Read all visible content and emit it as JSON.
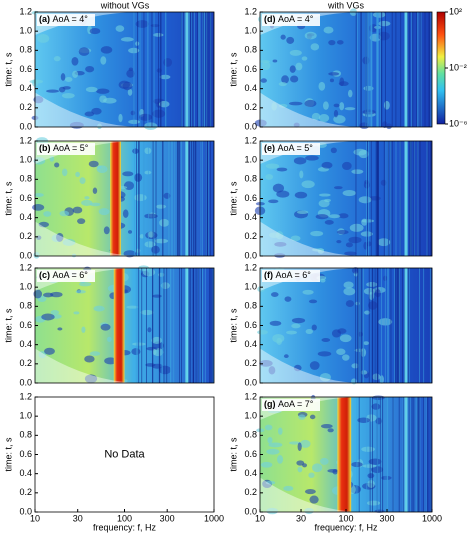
{
  "columns": [
    "without VGs",
    "with VGs"
  ],
  "chart_data": [
    {
      "type": "spectrogram",
      "panel": "(a)",
      "annotation": "AoA = 4°",
      "y_label": "time: t, s",
      "xlim": [
        10,
        1000
      ],
      "x_log": true,
      "ylim": [
        0,
        1.2
      ],
      "yticks": [
        {
          "value": 0,
          "label": "0.0"
        },
        0.2,
        0.4,
        0.6,
        0.8,
        {
          "value": 1,
          "label": "1.0"
        },
        1.2
      ]
    },
    {
      "type": "spectrogram",
      "panel": "(b)",
      "annotation": "AoA = 5°",
      "y_label": "time: t, s",
      "xlim": [
        10,
        1000
      ],
      "x_log": true,
      "ylim": [
        0,
        1.2
      ],
      "yticks": [
        {
          "value": 0,
          "label": "0.0"
        },
        0.2,
        0.4,
        0.6,
        0.8,
        {
          "value": 1,
          "label": "1.0"
        },
        1.2
      ]
    },
    {
      "type": "spectrogram",
      "panel": "(c)",
      "annotation": "AoA = 6°",
      "y_label": "time: t, s",
      "xlim": [
        10,
        1000
      ],
      "x_log": true,
      "ylim": [
        0,
        1.2
      ],
      "yticks": [
        {
          "value": 0,
          "label": "0.0"
        },
        0.2,
        0.4,
        0.6,
        0.8,
        {
          "value": 1,
          "label": "1.0"
        },
        1.2
      ]
    },
    {
      "type": "empty",
      "annotation": "No Data",
      "y_label": "time: t, s",
      "x_label": "frequency: f, Hz",
      "xlim": [
        10,
        1000
      ],
      "x_log": true,
      "ylim": [
        0,
        1.2
      ],
      "xticks": [
        10,
        30,
        100,
        300,
        1000
      ],
      "yticks": [
        {
          "value": 0,
          "label": "0.0"
        },
        0.2,
        0.4,
        0.6,
        0.8,
        {
          "value": 1,
          "label": "1.0"
        },
        1.2
      ]
    },
    {
      "type": "spectrogram",
      "panel": "(d)",
      "annotation": "AoA = 4°",
      "y_label": "time: t, s",
      "xlim": [
        10,
        1000
      ],
      "x_log": true,
      "ylim": [
        0,
        1.2
      ],
      "yticks": [
        {
          "value": 0,
          "label": "0.0"
        },
        0.2,
        0.4,
        0.6,
        0.8,
        {
          "value": 1,
          "label": "1.0"
        },
        1.2
      ],
      "colorbar": {
        "lim": [
          1e-06,
          100
        ],
        "log": true,
        "ticks": [
          {
            "value": 100,
            "label": "10²"
          },
          {
            "value": 0.01,
            "label": "10⁻²"
          },
          {
            "value": 1e-06,
            "label": "10⁻⁶"
          }
        ]
      }
    },
    {
      "type": "spectrogram",
      "panel": "(e)",
      "annotation": "AoA = 5°",
      "y_label": "time: t, s",
      "xlim": [
        10,
        1000
      ],
      "x_log": true,
      "ylim": [
        0,
        1.2
      ],
      "yticks": [
        {
          "value": 0,
          "label": "0.0"
        },
        0.2,
        0.4,
        0.6,
        0.8,
        {
          "value": 1,
          "label": "1.0"
        },
        1.2
      ]
    },
    {
      "type": "spectrogram",
      "panel": "(f)",
      "annotation": "AoA = 6°",
      "y_label": "time: t, s",
      "xlim": [
        10,
        1000
      ],
      "x_log": true,
      "ylim": [
        0,
        1.2
      ],
      "yticks": [
        {
          "value": 0,
          "label": "0.0"
        },
        0.2,
        0.4,
        0.6,
        0.8,
        {
          "value": 1,
          "label": "1.0"
        },
        1.2
      ]
    },
    {
      "type": "spectrogram",
      "panel": "(g)",
      "annotation": "AoA = 7°",
      "y_label": "time: t, s",
      "x_label": "frequency: f, Hz",
      "xlim": [
        10,
        1000
      ],
      "x_log": true,
      "ylim": [
        0,
        1.2
      ],
      "xticks": [
        10,
        30,
        100,
        300,
        1000
      ],
      "yticks": [
        {
          "value": 0,
          "label": "0.0"
        },
        0.2,
        0.4,
        0.6,
        0.8,
        {
          "value": 1,
          "label": "1.0"
        },
        1.2
      ]
    }
  ]
}
